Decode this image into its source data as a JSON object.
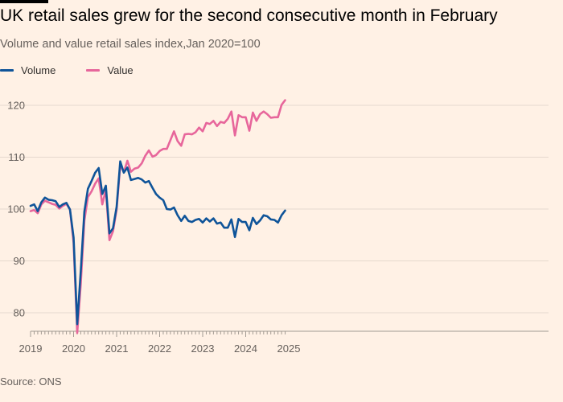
{
  "title": "UK retail sales grew for the second consecutive month in February",
  "subtitle": "Volume and value retail sales index,Jan 2020=100",
  "source": "Source: ONS",
  "colors": {
    "background": "#FFF1E5",
    "volume": "#0F5499",
    "value": "#E7669B",
    "grid": "#E6D9CE",
    "axis": "#A29A92"
  },
  "chart_data": {
    "type": "line",
    "title": "UK retail sales grew for the second consecutive month in February",
    "subtitle": "Volume and value retail sales index,Jan 2020=100",
    "xlabel": "",
    "ylabel": "",
    "x_start": "2019-01",
    "x_ticks": [
      "2019",
      "2020",
      "2021",
      "2022",
      "2023",
      "2024",
      "2025"
    ],
    "y_ticks": [
      80,
      90,
      100,
      110,
      120
    ],
    "ylim": [
      75,
      123
    ],
    "grid": true,
    "legend": "top-left",
    "series": [
      {
        "name": "Volume",
        "color": "#0F5499",
        "values": [
          100.6,
          100.9,
          99.6,
          101.3,
          102.2,
          101.8,
          101.7,
          101.5,
          100.4,
          100.9,
          101.2,
          99.9,
          94.5,
          77.8,
          88.0,
          99.5,
          103.9,
          105.4,
          107.0,
          107.9,
          102.9,
          104.5,
          95.3,
          96.3,
          100.4,
          109.2,
          107.0,
          108.0,
          105.6,
          105.8,
          106.0,
          105.7,
          105.1,
          105.4,
          104.1,
          102.9,
          102.2,
          101.7,
          100.0,
          99.9,
          100.3,
          98.8,
          97.7,
          98.7,
          97.7,
          97.5,
          97.9,
          98.1,
          97.4,
          98.2,
          97.6,
          98.2,
          97.2,
          97.4,
          96.4,
          96.4,
          98.0,
          94.6,
          98.1,
          97.5,
          97.5,
          95.9,
          98.3,
          97.1,
          97.8,
          98.8,
          98.6,
          98.0,
          97.9,
          97.4,
          98.8,
          99.7
        ]
      },
      {
        "name": "Value",
        "color": "#E7669B",
        "values": [
          99.6,
          99.8,
          99.2,
          100.9,
          101.6,
          101.3,
          101.0,
          100.8,
          100.1,
          100.6,
          101.0,
          99.9,
          93.5,
          76.1,
          85.5,
          97.8,
          102.3,
          103.4,
          104.9,
          105.9,
          100.9,
          103.7,
          94.0,
          95.7,
          99.9,
          108.5,
          107.1,
          109.3,
          107.2,
          107.8,
          108.0,
          108.8,
          110.3,
          111.3,
          110.1,
          110.4,
          111.2,
          111.6,
          111.6,
          113.3,
          115.0,
          113.1,
          112.2,
          114.4,
          114.5,
          114.4,
          114.8,
          115.7,
          115.0,
          116.6,
          116.4,
          117.0,
          116.0,
          116.8,
          116.6,
          117.4,
          118.8,
          114.2,
          118.1,
          117.7,
          117.7,
          115.1,
          118.6,
          117.0,
          118.3,
          118.8,
          118.3,
          117.6,
          117.7,
          117.7,
          120.1,
          121.0
        ]
      }
    ]
  }
}
